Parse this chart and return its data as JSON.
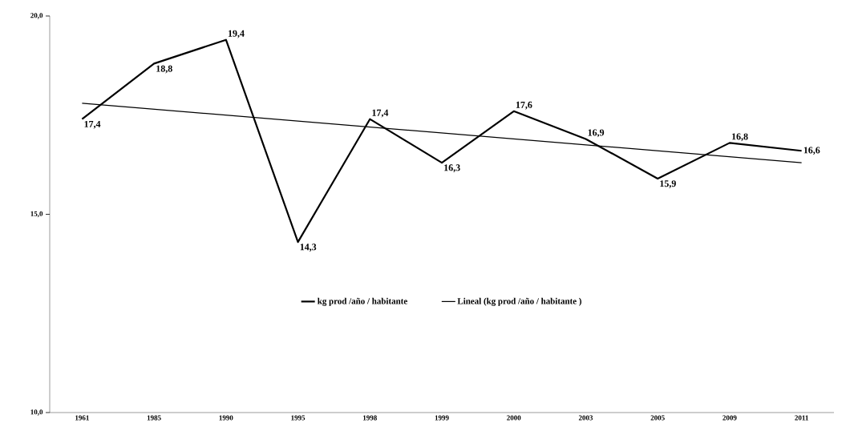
{
  "chart_data": {
    "type": "line",
    "categories": [
      "1961",
      "1985",
      "1990",
      "1995",
      "1998",
      "1999",
      "2000",
      "2003",
      "2005",
      "2009",
      "2011"
    ],
    "series": [
      {
        "name": "kg prod /año / habitante",
        "color": "#000000",
        "values": [
          17.4,
          18.8,
          19.4,
          14.3,
          17.4,
          16.3,
          17.6,
          16.9,
          15.9,
          16.8,
          16.6
        ],
        "value_labels": [
          "17,4",
          "18,8",
          "19,4",
          "14,3",
          "17,4",
          "16,3",
          "17,6",
          "16,9",
          "15,9",
          "16,8",
          "16,6"
        ]
      },
      {
        "name": "Lineal (kg prod /año / habitante )",
        "color": "#000000",
        "values": [
          17.8,
          null,
          null,
          null,
          null,
          null,
          null,
          null,
          null,
          null,
          16.3
        ]
      }
    ],
    "ylim": [
      10,
      20
    ],
    "yticks": [
      {
        "value": 10,
        "label": "10,0"
      },
      {
        "value": 15,
        "label": "15,0"
      },
      {
        "value": 20,
        "label": "20,0"
      }
    ],
    "legend": "center",
    "marker": "none",
    "line_style": "solid",
    "grid": false
  }
}
